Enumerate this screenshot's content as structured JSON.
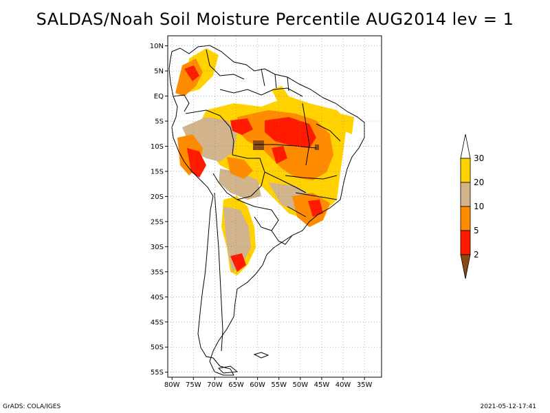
{
  "title": "SALDAS/Noah Soil Moisture Percentile AUG2014 lev = 1",
  "footer": {
    "left": "GrADS: COLA/IGES",
    "right": "2021-05-12-17:41"
  },
  "map": {
    "lon_range": [
      -81,
      -31
    ],
    "lat_range": [
      -56,
      12
    ],
    "lon_ticks": [
      {
        "value": -80,
        "label": "80W"
      },
      {
        "value": -75,
        "label": "75W"
      },
      {
        "value": -70,
        "label": "70W"
      },
      {
        "value": -65,
        "label": "65W"
      },
      {
        "value": -60,
        "label": "60W"
      },
      {
        "value": -55,
        "label": "55W"
      },
      {
        "value": -50,
        "label": "50W"
      },
      {
        "value": -45,
        "label": "45W"
      },
      {
        "value": -40,
        "label": "40W"
      },
      {
        "value": -35,
        "label": "35W"
      }
    ],
    "lat_ticks": [
      {
        "value": 10,
        "label": "10N"
      },
      {
        "value": 5,
        "label": "5N"
      },
      {
        "value": 0,
        "label": "EQ"
      },
      {
        "value": -5,
        "label": "5S"
      },
      {
        "value": -10,
        "label": "10S"
      },
      {
        "value": -15,
        "label": "15S"
      },
      {
        "value": -20,
        "label": "20S"
      },
      {
        "value": -25,
        "label": "25S"
      },
      {
        "value": -30,
        "label": "30S"
      },
      {
        "value": -35,
        "label": "35S"
      },
      {
        "value": -40,
        "label": "40S"
      },
      {
        "value": -45,
        "label": "45S"
      },
      {
        "value": -50,
        "label": "50S"
      },
      {
        "value": -55,
        "label": "55S"
      }
    ],
    "grid": true,
    "colors": {
      "lt2": "#8b4a14",
      "2to5": "#ff1a00",
      "5to10": "#ff8c00",
      "10to20": "#d2b48c",
      "20to30": "#ffd200"
    }
  },
  "colorbar": {
    "labels": [
      "2",
      "5",
      "10",
      "20",
      "30"
    ],
    "colors": [
      "#8b4a14",
      "#ff1a00",
      "#ff8c00",
      "#d2b48c",
      "#ffd200",
      "#ffffff"
    ]
  }
}
